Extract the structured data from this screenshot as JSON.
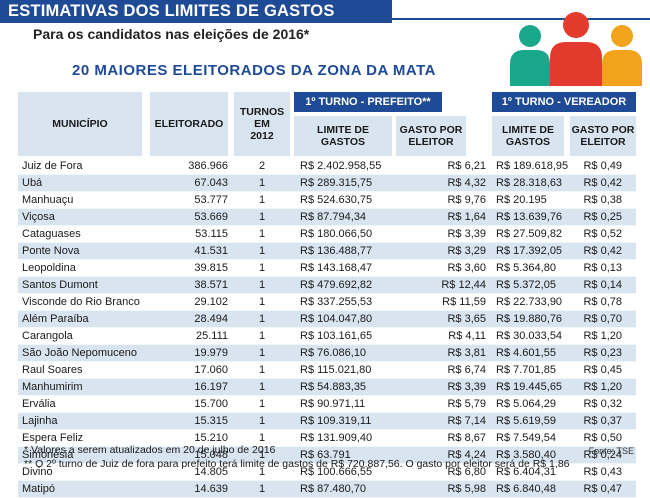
{
  "header": {
    "banner_title": "ESTIMATIVAS DOS LIMITES DE GASTOS",
    "subtitle": "Para os candidatos nas eleições de 2016*",
    "section_title": "20 MAIORES ELEITORADOS DA ZONA DA MATA"
  },
  "colors": {
    "brand_blue": "#1f4a96",
    "light_blue": "#d8e4ef",
    "icon_red": "#e23b2e",
    "icon_teal": "#1aa88a",
    "icon_orange": "#f2a31b"
  },
  "icon": "people-group-icon",
  "table": {
    "headers": {
      "municipio": "MUNICÍPIO",
      "eleitorado": "ELEITORADO",
      "turnos": "TURNOS\nEM\n2012",
      "prefeito_group": "1º TURNO - PREFEITO**",
      "vereador_group": "1º TURNO - VEREADOR",
      "limite_gastos_prefeito": "LIMITE DE\nGASTOS",
      "gasto_por_eleitor_prefeito": "GASTO POR\nELEITOR",
      "limite_gastos_vereador": "LIMITE DE\nGASTOS",
      "gasto_por_eleitor_vereador": "GASTO POR\nELEITOR"
    },
    "rows": [
      [
        "Juiz de Fora",
        "386.966",
        "2",
        "R$ 2.402.958,55",
        "R$ 6,21",
        "R$ 189.618,95",
        "R$ 0,49"
      ],
      [
        "Ubá",
        "67.043",
        "1",
        "R$ 289.315,75",
        "R$ 4,32",
        "R$ 28.318,63",
        "R$ 0,42"
      ],
      [
        "Manhuaçu",
        "53.777",
        "1",
        "R$ 524.630,75",
        "R$ 9,76",
        "R$ 20.195",
        "R$ 0,38"
      ],
      [
        "Viçosa",
        "53.669",
        "1",
        "R$ 87.794,34",
        "R$ 1,64",
        "R$ 13.639,76",
        "R$ 0,25"
      ],
      [
        "Cataguases",
        "53.115",
        "1",
        "R$ 180.066,50",
        "R$ 3,39",
        "R$ 27.509,82",
        "R$ 0,52"
      ],
      [
        "Ponte Nova",
        "41.531",
        "1",
        "R$ 136.488,77",
        "R$ 3,29",
        "R$ 17.392,05",
        "R$ 0,42"
      ],
      [
        "Leopoldina",
        "39.815",
        "1",
        "R$ 143.168,47",
        "R$ 3,60",
        "R$ 5.364,80",
        "R$ 0,13"
      ],
      [
        "Santos Dumont",
        "38.571",
        "1",
        "R$ 479.692,82",
        "R$ 12,44",
        "R$ 5.372,05",
        "R$ 0,14"
      ],
      [
        "Visconde do Rio Branco",
        "29.102",
        "1",
        "R$ 337.255,53",
        "R$ 11,59",
        "R$ 22.733,90",
        "R$ 0,78"
      ],
      [
        "Além Paraíba",
        "28.494",
        "1",
        "R$ 104.047,80",
        "R$ 3,65",
        "R$ 19.880,76",
        "R$ 0,70"
      ],
      [
        "Carangola",
        "25.111",
        "1",
        "R$ 103.161,65",
        "R$ 4,11",
        "R$ 30.033,54",
        "R$ 1,20"
      ],
      [
        "São João Nepomuceno",
        "19.979",
        "1",
        "R$ 76.086,10",
        "R$ 3,81",
        "R$ 4.601,55",
        "R$ 0,23"
      ],
      [
        "Raul Soares",
        "17.060",
        "1",
        "R$ 115.021,80",
        "R$ 6,74",
        "R$ 7.701,85",
        "R$ 0,45"
      ],
      [
        "Manhumirim",
        "16.197",
        "1",
        "R$ 54.883,35",
        "R$ 3,39",
        "R$ 19.445,65",
        "R$ 1,20"
      ],
      [
        "Ervália",
        "15.700",
        "1",
        "R$ 90.971,11",
        "R$ 5,79",
        "R$ 5.064,29",
        "R$ 0,32"
      ],
      [
        "Lajinha",
        "15.315",
        "1",
        "R$ 109.319,11",
        "R$ 7,14",
        "R$ 5.619,59",
        "R$ 0,37"
      ],
      [
        "Espera Feliz",
        "15.210",
        "1",
        "R$ 131.909,40",
        "R$ 8,67",
        "R$ 7.549,54",
        "R$ 0,50"
      ],
      [
        "Simonésia",
        "15.048",
        "1",
        "R$ 63.791",
        "R$ 4,24",
        "R$ 3.580,40",
        "R$ 0,24"
      ],
      [
        "Divino",
        "14.805",
        "1",
        "R$ 100.666,55",
        "R$ 6,80",
        "R$ 6.404,31",
        "R$ 0,43"
      ],
      [
        "Matipó",
        "14.639",
        "1",
        "R$ 87.480,70",
        "R$ 5,98",
        "R$ 6.840,48",
        "R$ 0,47"
      ]
    ]
  },
  "footnotes": {
    "note1": "* Valores a serem atualizados em 20 de julho de 2016",
    "note2": "** O 2º turno de Juiz de fora para prefeito terá limite de gastos de R$ 720.887,56. O gasto por eleitor será de R$ 1,86",
    "source": "Fonte: TSE"
  }
}
